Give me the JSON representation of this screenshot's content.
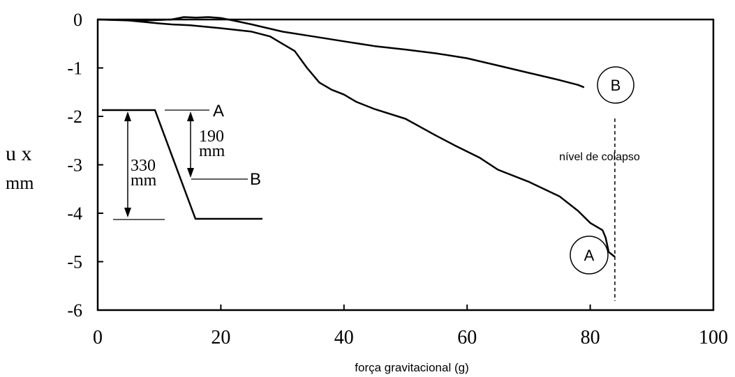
{
  "chart_data": {
    "type": "line",
    "xlabel": "força gravitacional (g)",
    "ylabel_line1": "u x",
    "ylabel_line2": "mm",
    "xlim": [
      0,
      100
    ],
    "ylim": [
      -6,
      0
    ],
    "xticks": [
      0,
      20,
      40,
      60,
      80,
      100
    ],
    "yticks": [
      0,
      -1,
      -2,
      -3,
      -4,
      -5,
      -6
    ],
    "grid": false,
    "series": [
      {
        "name": "A",
        "points": [
          [
            0,
            0
          ],
          [
            5,
            -0.02
          ],
          [
            10,
            -0.08
          ],
          [
            12,
            -0.1
          ],
          [
            15,
            -0.12
          ],
          [
            20,
            -0.18
          ],
          [
            25,
            -0.25
          ],
          [
            28,
            -0.35
          ],
          [
            30,
            -0.5
          ],
          [
            32,
            -0.65
          ],
          [
            34,
            -1.0
          ],
          [
            36,
            -1.3
          ],
          [
            38,
            -1.45
          ],
          [
            40,
            -1.55
          ],
          [
            42,
            -1.7
          ],
          [
            45,
            -1.85
          ],
          [
            50,
            -2.05
          ],
          [
            55,
            -2.4
          ],
          [
            58,
            -2.6
          ],
          [
            62,
            -2.85
          ],
          [
            65,
            -3.1
          ],
          [
            70,
            -3.35
          ],
          [
            75,
            -3.65
          ],
          [
            78,
            -3.95
          ],
          [
            80,
            -4.2
          ],
          [
            82,
            -4.35
          ],
          [
            82.5,
            -4.5
          ],
          [
            83,
            -4.8
          ],
          [
            84,
            -4.9
          ]
        ]
      },
      {
        "name": "B",
        "points": [
          [
            0,
            0
          ],
          [
            8,
            -0.02
          ],
          [
            12,
            0.0
          ],
          [
            14,
            0.05
          ],
          [
            16,
            0.04
          ],
          [
            18,
            0.05
          ],
          [
            20,
            0.03
          ],
          [
            22,
            -0.02
          ],
          [
            25,
            -0.1
          ],
          [
            30,
            -0.25
          ],
          [
            35,
            -0.35
          ],
          [
            40,
            -0.45
          ],
          [
            45,
            -0.55
          ],
          [
            50,
            -0.62
          ],
          [
            55,
            -0.7
          ],
          [
            60,
            -0.8
          ],
          [
            65,
            -0.95
          ],
          [
            70,
            -1.1
          ],
          [
            75,
            -1.25
          ],
          [
            78,
            -1.35
          ],
          [
            79,
            -1.4
          ]
        ]
      }
    ],
    "curve_labels": [
      "A",
      "B"
    ],
    "annotations": {
      "collapse_label": "nível de colapso",
      "collapse_x": 84,
      "inset": {
        "label_a": "A",
        "label_b": "B",
        "dim_small_value": "190",
        "dim_small_unit": "mm",
        "dim_large_value": "330",
        "dim_large_unit": "mm"
      }
    }
  }
}
